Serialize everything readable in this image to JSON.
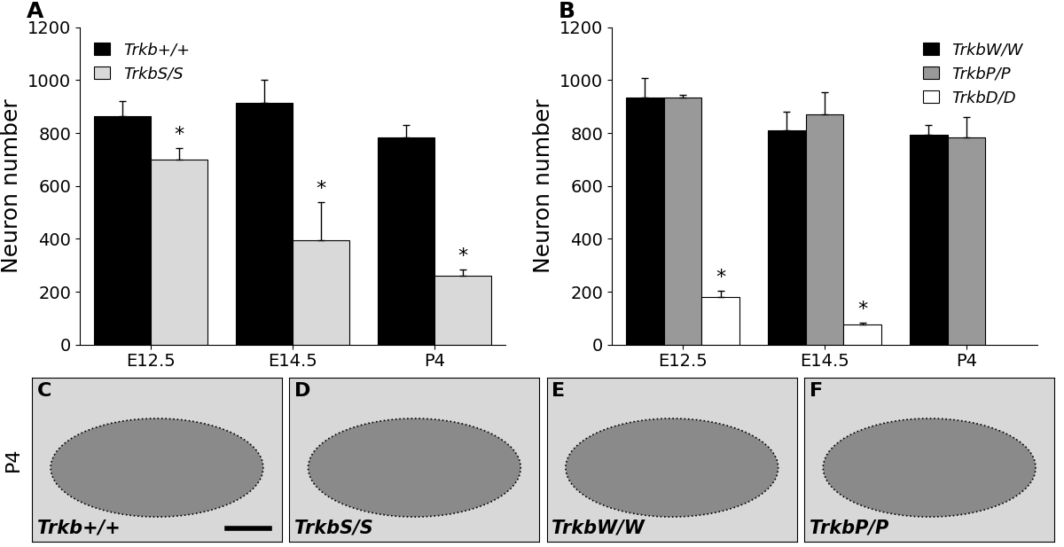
{
  "chart_data": [
    {
      "type": "bar",
      "annotations": [
        "A"
      ],
      "y_label": "Neuron number",
      "categories": [
        "E12.5",
        "E14.5",
        "P4"
      ],
      "ylim": [
        0,
        1200
      ],
      "yticks": [
        0,
        200,
        400,
        600,
        800,
        1000,
        1200
      ],
      "legend": "upper left",
      "series": [
        {
          "name": "Trkb+/+",
          "color": "#000000",
          "values": [
            865,
            915,
            785
          ],
          "errors": [
            55,
            85,
            45
          ],
          "marks": [
            null,
            null,
            null
          ]
        },
        {
          "name": "TrkbS/S",
          "color": "#d9d9d9",
          "values": [
            700,
            395,
            260
          ],
          "errors": [
            45,
            145,
            25
          ],
          "marks": [
            "*",
            "*",
            "*"
          ]
        }
      ]
    },
    {
      "type": "bar",
      "annotations": [
        "B"
      ],
      "y_label": "Neuron number",
      "categories": [
        "E12.5",
        "E14.5",
        "P4"
      ],
      "ylim": [
        0,
        1200
      ],
      "yticks": [
        0,
        200,
        400,
        600,
        800,
        1000,
        1200
      ],
      "legend": "upper right",
      "series": [
        {
          "name": "TrkbW/W",
          "color": "#000000",
          "values": [
            935,
            810,
            795
          ],
          "errors": [
            75,
            70,
            35
          ],
          "marks": [
            null,
            null,
            null
          ]
        },
        {
          "name": "TrkbP/P",
          "color": "#999999",
          "values": [
            935,
            870,
            785
          ],
          "errors": [
            8,
            85,
            75
          ],
          "marks": [
            null,
            null,
            null
          ]
        },
        {
          "name": "TrkbD/D",
          "color": "#ffffff",
          "values": [
            180,
            75,
            null
          ],
          "errors": [
            25,
            8,
            null
          ],
          "marks": [
            "*",
            "*",
            null
          ]
        }
      ]
    }
  ],
  "images": {
    "row_label": "P4",
    "panels": [
      {
        "letter": "C",
        "label": "Trkb+/+"
      },
      {
        "letter": "D",
        "label": "TrkbS/S"
      },
      {
        "letter": "E",
        "label": "TrkbW/W"
      },
      {
        "letter": "F",
        "label": "TrkbP/P"
      }
    ]
  }
}
